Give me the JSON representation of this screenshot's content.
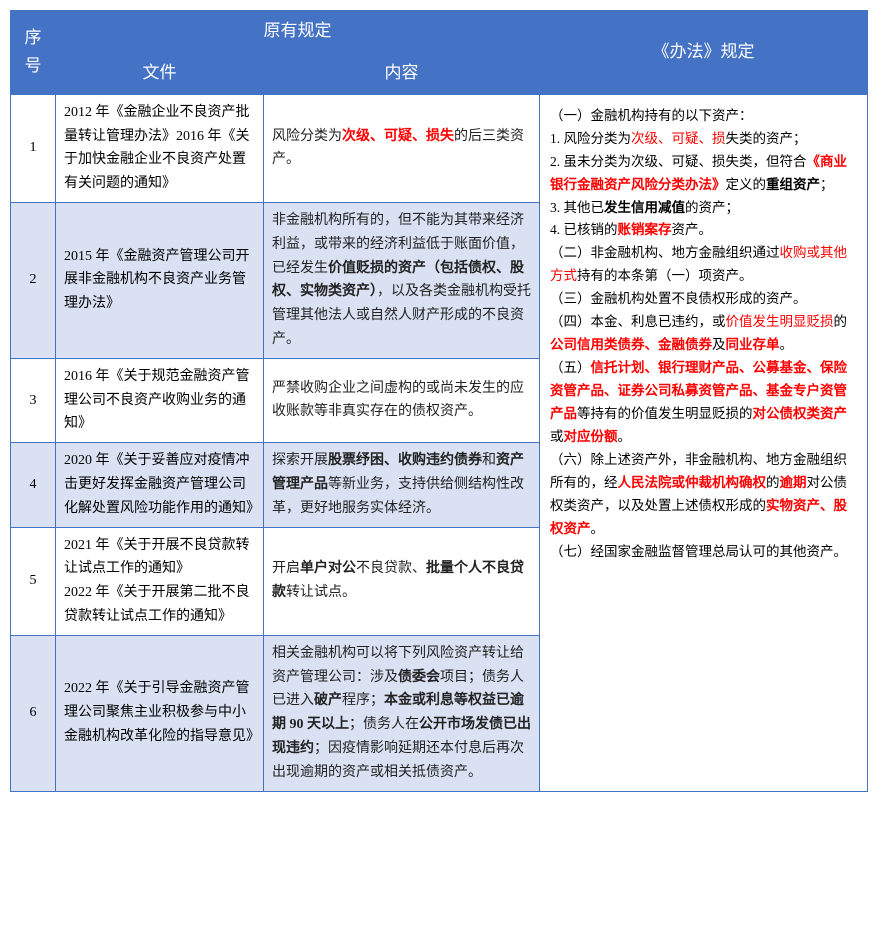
{
  "header": {
    "seq": "序号",
    "original": "原有规定",
    "doc": "文件",
    "content": "内容",
    "rule": "《办法》规定"
  },
  "rows": [
    {
      "seq": "1",
      "doc": "2012 年《金融企业不良资产批量转让管理办法》2016 年《关于加快金融企业不良资产处置有关问题的通知》",
      "content_parts": [
        {
          "t": "风险分类为"
        },
        {
          "t": "次级、可疑、损失",
          "bold": true,
          "red": true
        },
        {
          "t": "的后三类资产。"
        }
      ]
    },
    {
      "seq": "2",
      "doc": "2015 年《金融资产管理公司开展非金融机构不良资产业务管理办法》",
      "content_parts": [
        {
          "t": "非金融机构所有的，但不能为其带来经济利益，或带来的经济利益低于账面价值，已经发生"
        },
        {
          "t": "价值贬损的资产（包括债权、股权、实物类资产）",
          "bold": true
        },
        {
          "t": "，以及各类金融机构受托管理其他法人或自然人财产形成的不良资产。"
        }
      ]
    },
    {
      "seq": "3",
      "doc": "2016 年《关于规范金融资产管理公司不良资产收购业务的通知》",
      "content_parts": [
        {
          "t": "严禁收购企业之间虚构的或尚未发生的应收账款等非真实存在的债权资产。"
        }
      ]
    },
    {
      "seq": "4",
      "doc": "2020 年《关于妥善应对疫情冲击更好发挥金融资产管理公司化解处置风险功能作用的通知》",
      "content_parts": [
        {
          "t": "探索开展"
        },
        {
          "t": "股票纾困、收购违约债券",
          "bold": true
        },
        {
          "t": "和"
        },
        {
          "t": "资产管理产品",
          "bold": true
        },
        {
          "t": "等新业务，支持供给侧结构性改革，更好地服务实体经济。"
        }
      ]
    },
    {
      "seq": "5",
      "doc": "2021 年《关于开展不良贷款转让试点工作的通知》\n2022 年《关于开展第二批不良贷款转让试点工作的通知》",
      "content_parts": [
        {
          "t": "开启"
        },
        {
          "t": "单户对公",
          "bold": true
        },
        {
          "t": "不良贷款、"
        },
        {
          "t": "批量个人不良贷款",
          "bold": true
        },
        {
          "t": "转让试点。"
        }
      ]
    },
    {
      "seq": "6",
      "doc": "2022 年《关于引导金融资产管理公司聚焦主业积极参与中小金融机构改革化险的指导意见》",
      "content_parts": [
        {
          "t": "相关金融机构可以将下列风险资产转让给资产管理公司：涉及"
        },
        {
          "t": "债委会",
          "bold": true
        },
        {
          "t": "项目；债务人已进入"
        },
        {
          "t": "破产",
          "bold": true
        },
        {
          "t": "程序；"
        },
        {
          "t": "本金或利息等权益已逾期 90 天以上",
          "bold": true
        },
        {
          "t": "；债务人在"
        },
        {
          "t": "公开市场发债已出现违约",
          "bold": true
        },
        {
          "t": "；因疫情影响延期还本付息后再次出现逾期的资产或相关抵债资产。"
        }
      ]
    }
  ],
  "rule_parts": [
    {
      "t": "（一）金融机构持有的以下资产："
    },
    {
      "br": true
    },
    {
      "t": "1. 风险分类为"
    },
    {
      "t": "次级、可疑、损",
      "red": true
    },
    {
      "t": "失类的资产；"
    },
    {
      "br": true
    },
    {
      "t": "2. 虽未分类为次级、可疑、损失类，但符合"
    },
    {
      "t": "《商业银行金融资产风险分类办法》",
      "red": true,
      "bold": true
    },
    {
      "t": "定义的"
    },
    {
      "t": "重组资产",
      "bold": true
    },
    {
      "t": "；"
    },
    {
      "br": true
    },
    {
      "t": "3. 其他已"
    },
    {
      "t": "发生信用减值",
      "bold": true
    },
    {
      "t": "的资产；"
    },
    {
      "br": true
    },
    {
      "t": "4. 已核销的"
    },
    {
      "t": "账销案存",
      "red": true,
      "bold": true
    },
    {
      "t": "资产。"
    },
    {
      "br": true
    },
    {
      "t": "（二）非金融机构、地方金融组织通过"
    },
    {
      "t": "收购或其他方式",
      "red": true
    },
    {
      "t": "持有的本条第（一）项资产。"
    },
    {
      "br": true
    },
    {
      "t": "（三）金融机构处置不良债权形成的资产。"
    },
    {
      "br": true
    },
    {
      "t": "（四）本金、利息已违约，或"
    },
    {
      "t": "价值发生明显贬损",
      "red": true
    },
    {
      "t": "的"
    },
    {
      "t": "公司信用类债券、金融债券",
      "red": true,
      "bold": true
    },
    {
      "t": "及"
    },
    {
      "t": "同业存单",
      "red": true,
      "bold": true
    },
    {
      "t": "。"
    },
    {
      "br": true
    },
    {
      "t": "（五）"
    },
    {
      "t": "信托计划、银行理财产品、公募基金、保险资管产品、证券公司私募资管产品、基金专户资管产品",
      "red": true,
      "bold": true
    },
    {
      "t": "等持有的价值发生明显贬损的"
    },
    {
      "t": "对公债权类资产",
      "red": true,
      "bold": true
    },
    {
      "t": "或"
    },
    {
      "t": "对应份额",
      "red": true,
      "bold": true
    },
    {
      "t": "。"
    },
    {
      "br": true
    },
    {
      "t": "（六）除上述资产外，非金融机构、地方金融组织所有的，经"
    },
    {
      "t": "人民法院或仲裁机构确权",
      "red": true,
      "bold": true
    },
    {
      "t": "的"
    },
    {
      "t": "逾期",
      "red": true,
      "bold": true
    },
    {
      "t": "对公债权类资产，以及处置上述债权形成的"
    },
    {
      "t": "实物资产、股权资产",
      "red": true,
      "bold": true
    },
    {
      "t": "。"
    },
    {
      "br": true
    },
    {
      "t": "（七）经国家金融监督管理总局认可的其他资产。"
    }
  ],
  "colors": {
    "header_bg": "#4472c4",
    "border": "#4472c4",
    "row_even_bg": "#d9e1f2",
    "row_odd_bg": "#ffffff",
    "red": "#ff0000",
    "text": "#000000",
    "header_text": "#ffffff"
  }
}
